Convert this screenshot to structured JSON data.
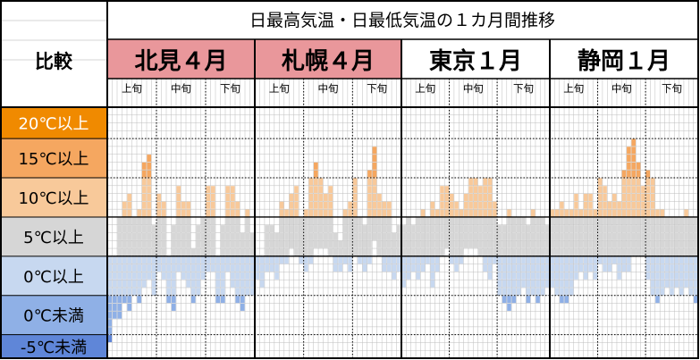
{
  "title": "日最高気温・日最低気温の１カ月間推移",
  "corner_label": "比較",
  "decades": [
    "上旬",
    "中旬",
    "下旬"
  ],
  "colors": {
    "band_20": "#f08a00",
    "band_15": "#f5a760",
    "band_10": "#f8c99a",
    "band_5": "#d6d6d6",
    "band_0": "#c7d8f0",
    "band_lt0": "#8fb0e6",
    "band_lt_m5": "#5f86d8",
    "header_pink": "#e9979b",
    "cell_grid": "#bdbdbd",
    "frame": "#000000"
  },
  "chart_data": {
    "type": "bar",
    "title": "日最高気温・日最低気温の１カ月間推移",
    "bands": [
      {
        "label": "20℃以上",
        "min": 20,
        "max": 24,
        "color": "#f08a00"
      },
      {
        "label": "15℃以上",
        "min": 15,
        "max": 20,
        "color": "#f5a760"
      },
      {
        "label": "10℃以上",
        "min": 10,
        "max": 15,
        "color": "#f8c99a"
      },
      {
        "label": "5℃以上",
        "min": 5,
        "max": 10,
        "color": "#d6d6d6"
      },
      {
        "label": "0℃以上",
        "min": 0,
        "max": 5,
        "color": "#c7d8f0"
      },
      {
        "label": "0℃未満",
        "min": -5,
        "max": 0,
        "color": "#8fb0e6"
      },
      {
        "label": "-5℃未満",
        "min": -8,
        "max": -5,
        "color": "#5f86d8"
      }
    ],
    "ylim": [
      -8,
      24
    ],
    "series": [
      {
        "name": "北見４月",
        "highlight": true,
        "days": [
          1,
          2,
          3,
          4,
          5,
          6,
          7,
          8,
          9,
          10,
          11,
          12,
          13,
          14,
          15,
          16,
          17,
          18,
          19,
          20,
          21,
          22,
          23,
          24,
          25,
          26,
          27,
          28,
          29,
          30
        ],
        "highs": [
          5,
          5,
          10,
          12,
          13,
          10,
          11,
          17,
          18,
          9,
          13,
          12,
          5,
          9,
          14,
          12,
          12,
          6,
          9,
          10,
          14,
          14,
          5,
          9,
          14,
          14,
          12,
          8,
          11,
          8
        ],
        "lows": [
          -6,
          -3,
          -3,
          -1,
          -2,
          0,
          -1,
          1,
          2,
          0,
          3,
          2,
          -1,
          -2,
          3,
          2,
          1,
          -1,
          0,
          2,
          3,
          3,
          -1,
          -1,
          3,
          1,
          -1,
          -2,
          0,
          0
        ]
      },
      {
        "name": "札幌４月",
        "highlight": true,
        "days": [
          1,
          2,
          3,
          4,
          5,
          6,
          7,
          8,
          9,
          10,
          11,
          12,
          13,
          14,
          15,
          16,
          17,
          18,
          19,
          20,
          21,
          22,
          23,
          24,
          25,
          26,
          27,
          28,
          29,
          30
        ],
        "highs": [
          5,
          5,
          9,
          9,
          8,
          12,
          11,
          13,
          14,
          10,
          11,
          15,
          17,
          15,
          13,
          14,
          8,
          7,
          11,
          12,
          15,
          10,
          9,
          16,
          19,
          13,
          12,
          12,
          8,
          9
        ],
        "lows": [
          2,
          1,
          3,
          3,
          2,
          4,
          4,
          6,
          5,
          4,
          3,
          4,
          6,
          6,
          6,
          5,
          3,
          3,
          4,
          3,
          5,
          4,
          3,
          4,
          7,
          5,
          3,
          3,
          2,
          3
        ]
      },
      {
        "name": "東京１月",
        "highlight": false,
        "days": [
          1,
          2,
          3,
          4,
          5,
          6,
          7,
          8,
          9,
          10,
          11,
          12,
          13,
          14,
          15,
          16,
          17,
          18,
          19,
          20,
          21,
          22,
          23,
          24,
          25,
          26,
          27,
          28,
          29,
          30,
          31
        ],
        "highs": [
          9,
          10,
          9,
          10,
          11,
          10,
          12,
          11,
          14,
          14,
          13,
          12,
          11,
          13,
          15,
          15,
          14,
          15,
          15,
          12,
          9,
          9,
          11,
          10,
          10,
          10,
          9,
          11,
          10,
          10,
          9
        ],
        "lows": [
          1,
          2,
          3,
          2,
          3,
          4,
          1,
          3,
          5,
          6,
          4,
          3,
          4,
          6,
          6,
          6,
          5,
          3,
          2,
          4,
          0,
          -1,
          -2,
          -1,
          0,
          1,
          -1,
          0,
          -1,
          0,
          1
        ]
      },
      {
        "name": "静岡１月",
        "highlight": false,
        "days": [
          1,
          2,
          3,
          4,
          5,
          6,
          7,
          8,
          9,
          10,
          11,
          12,
          13,
          14,
          15,
          16,
          17,
          18,
          19,
          20,
          21,
          22,
          23,
          24,
          25,
          26,
          27,
          28,
          29,
          30,
          31
        ],
        "highs": [
          11,
          11,
          12,
          11,
          11,
          13,
          11,
          13,
          13,
          11,
          15,
          14,
          12,
          13,
          12,
          16,
          19,
          20,
          17,
          14,
          16,
          15,
          11,
          11,
          10,
          10,
          10,
          10,
          11,
          10,
          10
        ],
        "lows": [
          1,
          0,
          -1,
          -1,
          0,
          2,
          3,
          2,
          3,
          2,
          4,
          3,
          3,
          4,
          2,
          3,
          3,
          5,
          5,
          5,
          2,
          0,
          -1,
          0,
          1,
          0,
          1,
          0,
          1,
          0,
          -1
        ]
      }
    ]
  }
}
